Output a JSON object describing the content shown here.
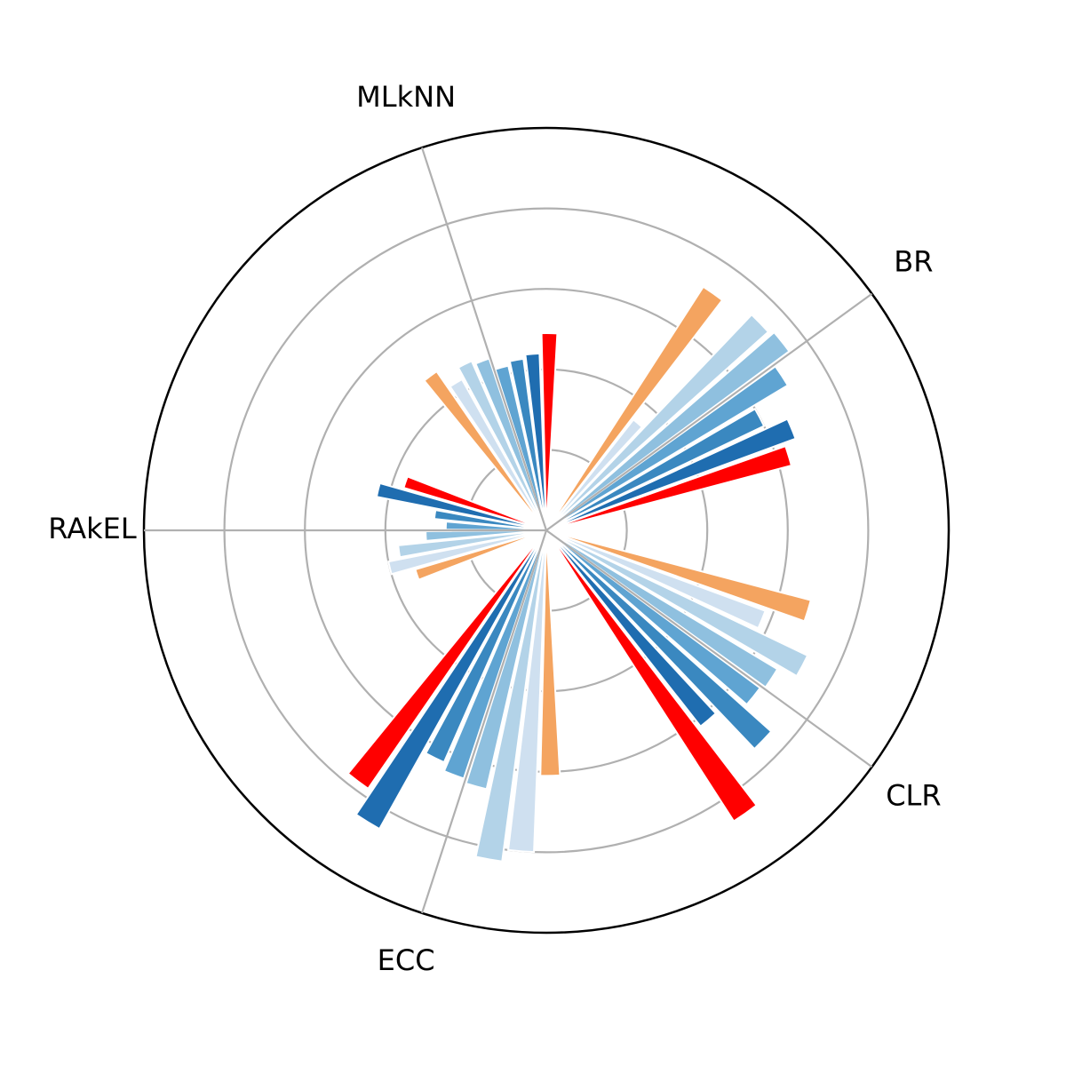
{
  "chart_data": {
    "type": "bar",
    "subtype": "polar-grouped",
    "groups": [
      "BR",
      "CLR",
      "ECC",
      "RAkEL",
      "MLkNN"
    ],
    "series_colors": [
      "#f4a460",
      "#cfe0f0",
      "#b3d3e8",
      "#8fc0df",
      "#5fa4d2",
      "#3a88c0",
      "#1f6db0",
      "#ff0000"
    ],
    "series_values": [
      [
        0.72,
        0.35,
        0.74,
        0.75,
        0.7,
        0.6,
        0.66,
        0.63
      ],
      [
        0.68,
        0.58,
        0.72,
        0.67,
        0.66,
        0.75,
        0.62,
        0.86
      ],
      [
        0.61,
        0.8,
        0.83,
        0.66,
        0.65,
        0.63,
        0.85,
        0.78
      ],
      [
        0.34,
        0.4,
        0.37,
        0.3,
        0.25,
        0.28,
        0.43,
        0.37
      ],
      [
        0.48,
        0.43,
        0.46,
        0.45,
        0.42,
        0.43,
        0.44,
        0.49
      ]
    ],
    "rmax": 1.0,
    "radial_ticks": [
      0.2,
      0.4,
      0.6,
      0.8
    ],
    "radial_tick_labels_visible": false,
    "grid": true
  }
}
